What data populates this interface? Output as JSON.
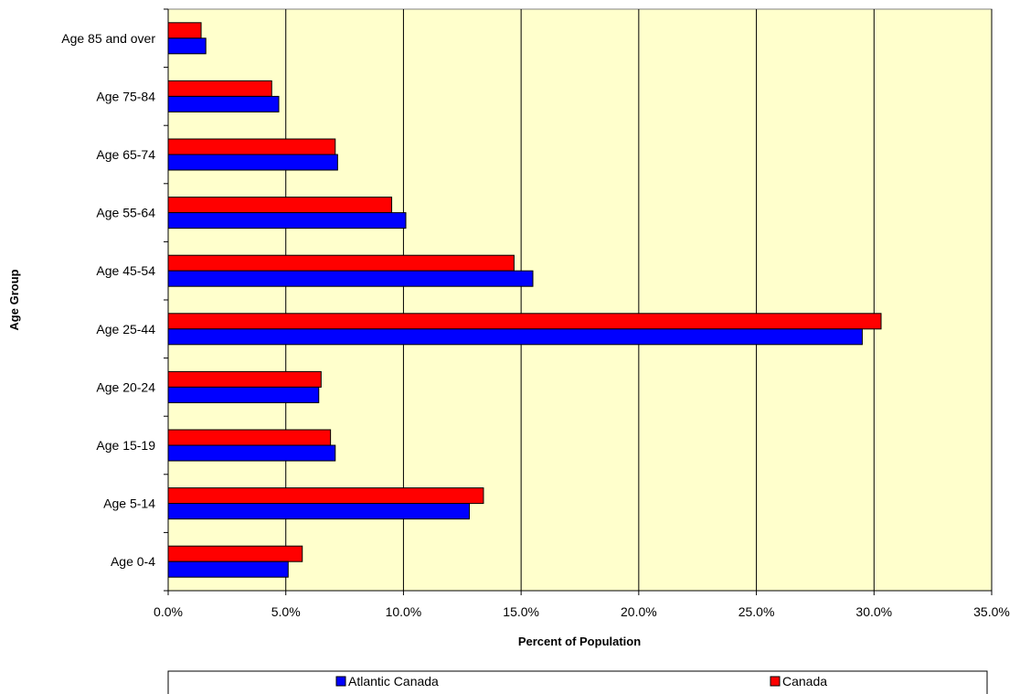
{
  "chart_data": {
    "type": "bar",
    "orientation": "horizontal",
    "xlabel": "Percent of Population",
    "ylabel": "Age Group",
    "xlim": [
      0,
      35
    ],
    "x_ticks": [
      "0.0%",
      "5.0%",
      "10.0%",
      "15.0%",
      "20.0%",
      "25.0%",
      "30.0%",
      "35.0%"
    ],
    "categories": [
      "Age 0-4",
      "Age 5-14",
      "Age 15-19",
      "Age 20-24",
      "Age 25-44",
      "Age 45-54",
      "Age 55-64",
      "Age 65-74",
      "Age 75-84",
      "Age 85 and over"
    ],
    "series": [
      {
        "name": "Atlantic Canada",
        "color": "#0000ff",
        "values": [
          5.1,
          12.8,
          7.1,
          6.4,
          29.5,
          15.5,
          10.1,
          7.2,
          4.7,
          1.6
        ]
      },
      {
        "name": "Canada",
        "color": "#ff0000",
        "values": [
          5.7,
          13.4,
          6.9,
          6.5,
          30.3,
          14.7,
          9.5,
          7.1,
          4.4,
          1.4
        ]
      }
    ],
    "plot_background": "#ffffcc",
    "grid": "vertical",
    "legend_position": "bottom"
  }
}
